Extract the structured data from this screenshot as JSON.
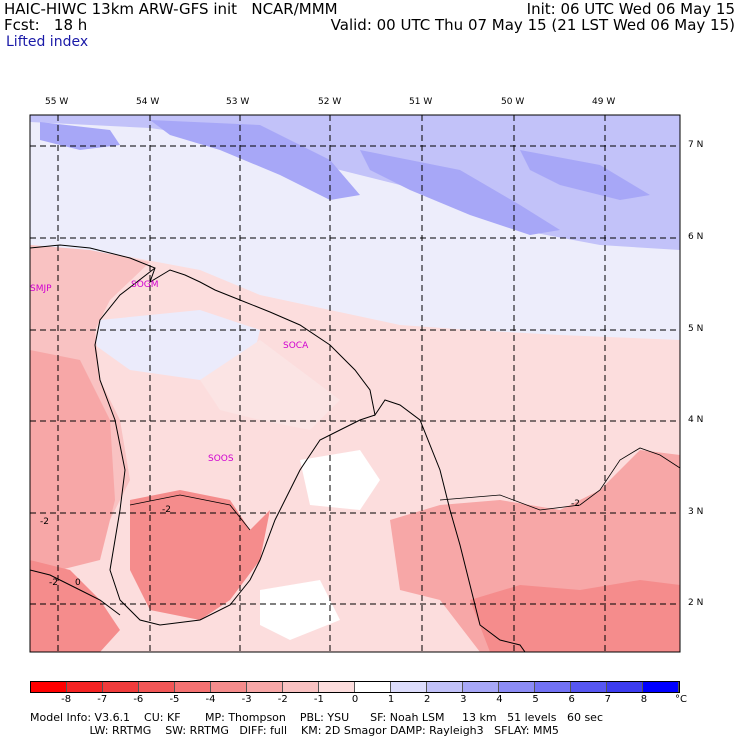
{
  "header": {
    "line1_left": "HAIC-HIWC 13km ARW-GFS init   NCAR/MMM",
    "line1_right": "Init: 06 UTC Wed 06 May 15",
    "line2_left": "Fcst:   18 h",
    "line2_right": "Valid: 00 UTC Thu 07 May 15 (21 LST Wed 06 May 15)",
    "line3_left": "Lifted index"
  },
  "map": {
    "lon_labels": [
      "55 W",
      "54 W",
      "53 W",
      "52 W",
      "51 W",
      "50 W",
      "49 W"
    ],
    "lat_labels": [
      "7 N",
      "6 N",
      "5 N",
      "4 N",
      "3 N",
      "2 N"
    ],
    "stations": [
      "SMJP",
      "SOGM",
      "SOCA",
      "SOOS"
    ],
    "contour_labels": [
      "-2",
      "-2",
      "-2",
      "-2",
      "0"
    ]
  },
  "colorbar": {
    "ticks": [
      "-8",
      "-7",
      "-6",
      "-5",
      "-4",
      "-3",
      "-2",
      "-1",
      "0",
      "1",
      "2",
      "3",
      "4",
      "5",
      "6",
      "7",
      "8"
    ],
    "unit": "°C",
    "colors": [
      "#ff0000",
      "#f52323",
      "#f03c3c",
      "#f25757",
      "#f47272",
      "#f58c8c",
      "#f7a7a7",
      "#f9c2c2",
      "#fcdddd",
      "#ffffff",
      "#ddddfc",
      "#c2c2f9",
      "#a7a7f7",
      "#8c8cf5",
      "#7272f4",
      "#5757f2",
      "#3c3cf0",
      "#0000ff"
    ]
  },
  "footer": {
    "line1": "Model Info: V3.6.1    CU: KF       MP: Thompson    PBL: YSU      SF: Noah LSM     13 km   51 levels   60 sec",
    "line2": "                 LW: RRTMG    SW: RRTMG   DIFF: full    KM: 2D Smagor DAMP: Rayleigh3   SFLAY: MM5"
  }
}
